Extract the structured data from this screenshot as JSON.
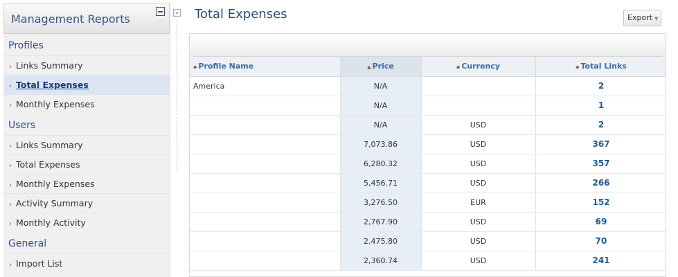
{
  "sidebar": {
    "title": "Management Reports",
    "sections": [
      {
        "label": "Profiles",
        "items": [
          {
            "label": "Links Summary",
            "active": false
          },
          {
            "label": "Total Expenses",
            "active": true
          },
          {
            "label": "Monthly Expenses",
            "active": false
          }
        ]
      },
      {
        "label": "Users",
        "items": [
          {
            "label": "Links Summary",
            "active": false
          },
          {
            "label": "Total Expenses",
            "active": false
          },
          {
            "label": "Monthly Expenses",
            "active": false
          },
          {
            "label": "Activity Summary",
            "active": false
          },
          {
            "label": "Monthly Activity",
            "active": false
          }
        ]
      },
      {
        "label": "General",
        "items": [
          {
            "label": "Import List",
            "active": false
          }
        ]
      }
    ]
  },
  "main": {
    "title": "Total Expenses",
    "export_label": "Export",
    "columns": [
      "Profile Name",
      "Price",
      "Currency",
      "Total Links"
    ],
    "rows": [
      {
        "name": "America",
        "price": "N/A",
        "currency": "",
        "links": "2"
      },
      {
        "name": "",
        "price": "N/A",
        "currency": "",
        "links": "1"
      },
      {
        "name": "",
        "price": "N/A",
        "currency": "USD",
        "links": "2"
      },
      {
        "name": "",
        "price": "7,073.86",
        "currency": "USD",
        "links": "367"
      },
      {
        "name": "",
        "price": "6,280.32",
        "currency": "USD",
        "links": "357"
      },
      {
        "name": "",
        "price": "5,456.71",
        "currency": "USD",
        "links": "266"
      },
      {
        "name": "",
        "price": "3,276.50",
        "currency": "EUR",
        "links": "152"
      },
      {
        "name": "",
        "price": "2,767.90",
        "currency": "USD",
        "links": "69"
      },
      {
        "name": "",
        "price": "2,475.80",
        "currency": "USD",
        "links": "70"
      },
      {
        "name": "",
        "price": "2,360.74",
        "currency": "USD",
        "links": "241"
      }
    ]
  }
}
